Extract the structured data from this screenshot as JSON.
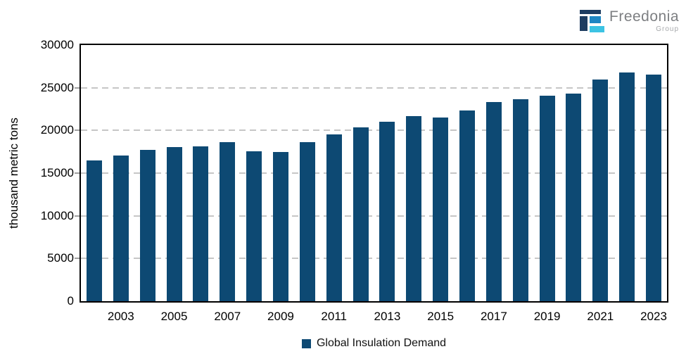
{
  "logo": {
    "brand": "Freedonia",
    "group": "Group",
    "colors": {
      "dark": "#1d3c61",
      "mid": "#1e86c3",
      "light": "#3cc3e3"
    }
  },
  "chart_data": {
    "type": "bar",
    "title": "",
    "xlabel": "",
    "ylabel": "thousand metric tons",
    "ylim": [
      0,
      30000
    ],
    "ytick_step": 5000,
    "grid": "horizontal-dashed",
    "legend_position": "bottom-center",
    "bar_color": "#0d4973",
    "categories": [
      2002,
      2003,
      2004,
      2005,
      2006,
      2007,
      2008,
      2009,
      2010,
      2011,
      2012,
      2013,
      2014,
      2015,
      2016,
      2017,
      2018,
      2019,
      2020,
      2021,
      2022,
      2023
    ],
    "values": [
      16450,
      17050,
      17750,
      18050,
      18100,
      18600,
      17550,
      17450,
      18600,
      19500,
      20350,
      21000,
      21650,
      21550,
      22300,
      23350,
      23650,
      24100,
      24350,
      26000,
      26750,
      26500
    ],
    "x_axis_labeled_categories": [
      2003,
      2005,
      2007,
      2009,
      2011,
      2013,
      2015,
      2017,
      2019,
      2021,
      2023
    ],
    "legend": {
      "label": "Global Insulation Demand",
      "swatch_color": "#0d4973"
    }
  }
}
